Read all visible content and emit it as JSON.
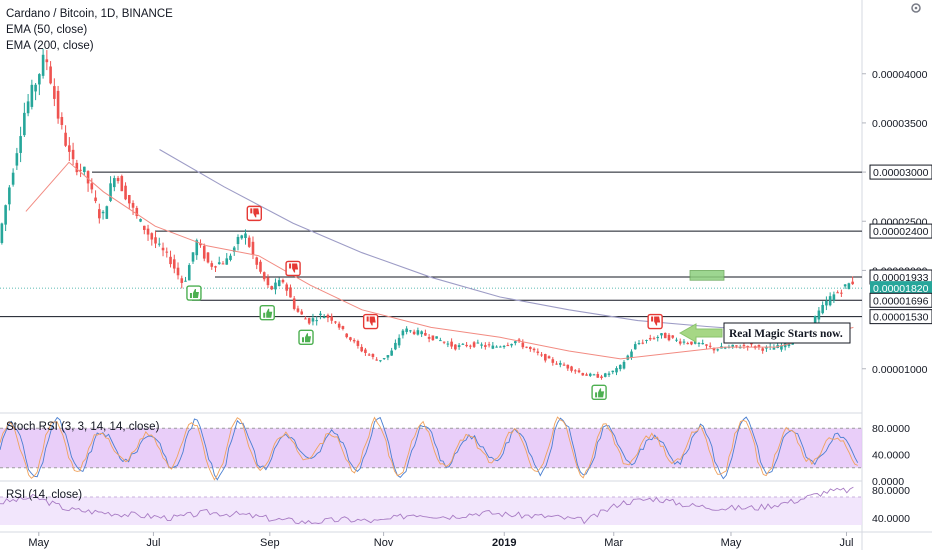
{
  "legend": {
    "title": "Cardano / Bitcoin, 1D, BINANCE",
    "ema_fast": "EMA (50, close)",
    "ema_slow": "EMA (200, close)"
  },
  "panels": {
    "stoch_label": "Stoch RSI (3, 3, 14, 14, close)",
    "rsi_label": "RSI (14, close)"
  },
  "annotation": {
    "text": "Real Magic Starts now."
  },
  "colors": {
    "up": "#26a69a",
    "down": "#ef5350",
    "ema_fast": "#f28b82",
    "ema_slow": "#9d9cc6",
    "price_badge": "#26a69a",
    "band": "#e1bef7",
    "arrow": "#a6d785",
    "target": "#8ccf7e"
  },
  "chart_data": [
    {
      "type": "candlestick",
      "title": "Cardano / Bitcoin, 1D, BINANCE",
      "x_ticks": [
        "May",
        "Jul",
        "Sep",
        "Nov",
        "2019",
        "Mar",
        "May",
        "Jul"
      ],
      "y_ticks": [
        "0.00004000",
        "0.00003500",
        "0.00003000",
        "0.00002500",
        "0.00002000",
        "0.00001000"
      ],
      "ylim": [
        5.5e-06,
        4.75e-05
      ],
      "series_points": [
        {
          "t": 0.0,
          "v": 2.28e-05
        },
        {
          "t": 0.03,
          "v": 3.6e-05
        },
        {
          "t": 0.045,
          "v": 3.95e-05
        },
        {
          "t": 0.055,
          "v": 4.2e-05
        },
        {
          "t": 0.07,
          "v": 3.55e-05
        },
        {
          "t": 0.085,
          "v": 3.1e-05
        },
        {
          "t": 0.1,
          "v": 3e-05
        },
        {
          "t": 0.12,
          "v": 2.5e-05
        },
        {
          "t": 0.135,
          "v": 3e-05
        },
        {
          "t": 0.16,
          "v": 2.55e-05
        },
        {
          "t": 0.18,
          "v": 2.3e-05
        },
        {
          "t": 0.2,
          "v": 2.1e-05
        },
        {
          "t": 0.215,
          "v": 1.85e-05
        },
        {
          "t": 0.23,
          "v": 2.3e-05
        },
        {
          "t": 0.245,
          "v": 2.05e-05
        },
        {
          "t": 0.265,
          "v": 2.1e-05
        },
        {
          "t": 0.285,
          "v": 2.4e-05
        },
        {
          "t": 0.3,
          "v": 2.05e-05
        },
        {
          "t": 0.315,
          "v": 1.8e-05
        },
        {
          "t": 0.33,
          "v": 1.9e-05
        },
        {
          "t": 0.345,
          "v": 1.6e-05
        },
        {
          "t": 0.36,
          "v": 1.48e-05
        },
        {
          "t": 0.375,
          "v": 1.55e-05
        },
        {
          "t": 0.39,
          "v": 1.5e-05
        },
        {
          "t": 0.4,
          "v": 1.38e-05
        },
        {
          "t": 0.42,
          "v": 1.2e-05
        },
        {
          "t": 0.44,
          "v": 1.08e-05
        },
        {
          "t": 0.455,
          "v": 1.15e-05
        },
        {
          "t": 0.47,
          "v": 1.4e-05
        },
        {
          "t": 0.49,
          "v": 1.36e-05
        },
        {
          "t": 0.51,
          "v": 1.3e-05
        },
        {
          "t": 0.53,
          "v": 1.22e-05
        },
        {
          "t": 0.55,
          "v": 1.25e-05
        },
        {
          "t": 0.575,
          "v": 1.22e-05
        },
        {
          "t": 0.6,
          "v": 1.28e-05
        },
        {
          "t": 0.62,
          "v": 1.18e-05
        },
        {
          "t": 0.64,
          "v": 1.08e-05
        },
        {
          "t": 0.66,
          "v": 1.02e-05
        },
        {
          "t": 0.68,
          "v": 9.4e-06
        },
        {
          "t": 0.7,
          "v": 9.2e-06
        },
        {
          "t": 0.72,
          "v": 1e-05
        },
        {
          "t": 0.74,
          "v": 1.25e-05
        },
        {
          "t": 0.755,
          "v": 1.3e-05
        },
        {
          "t": 0.77,
          "v": 1.34e-05
        },
        {
          "t": 0.79,
          "v": 1.28e-05
        },
        {
          "t": 0.81,
          "v": 1.26e-05
        },
        {
          "t": 0.83,
          "v": 1.2e-05
        },
        {
          "t": 0.85,
          "v": 1.22e-05
        },
        {
          "t": 0.87,
          "v": 1.24e-05
        },
        {
          "t": 0.89,
          "v": 1.2e-05
        },
        {
          "t": 0.905,
          "v": 1.22e-05
        },
        {
          "t": 0.92,
          "v": 1.28e-05
        },
        {
          "t": 0.935,
          "v": 1.35e-05
        },
        {
          "t": 0.95,
          "v": 1.55e-05
        },
        {
          "t": 0.965,
          "v": 1.72e-05
        },
        {
          "t": 0.98,
          "v": 1.82e-05
        },
        {
          "t": 0.99,
          "v": 1.88e-05
        }
      ],
      "ema50_points": [
        {
          "t": 0.03,
          "v": 2.6e-05
        },
        {
          "t": 0.08,
          "v": 3.1e-05
        },
        {
          "t": 0.12,
          "v": 2.8e-05
        },
        {
          "t": 0.18,
          "v": 2.45e-05
        },
        {
          "t": 0.24,
          "v": 2.25e-05
        },
        {
          "t": 0.3,
          "v": 2.15e-05
        },
        {
          "t": 0.36,
          "v": 1.85e-05
        },
        {
          "t": 0.42,
          "v": 1.6e-05
        },
        {
          "t": 0.5,
          "v": 1.42e-05
        },
        {
          "t": 0.58,
          "v": 1.32e-05
        },
        {
          "t": 0.66,
          "v": 1.18e-05
        },
        {
          "t": 0.72,
          "v": 1.1e-05
        },
        {
          "t": 0.78,
          "v": 1.16e-05
        },
        {
          "t": 0.84,
          "v": 1.22e-05
        },
        {
          "t": 0.9,
          "v": 1.22e-05
        },
        {
          "t": 0.96,
          "v": 1.35e-05
        },
        {
          "t": 0.99,
          "v": 1.42e-05
        }
      ],
      "ema200_points": [
        {
          "t": 0.185,
          "v": 3.23e-05
        },
        {
          "t": 0.26,
          "v": 2.85e-05
        },
        {
          "t": 0.34,
          "v": 2.48e-05
        },
        {
          "t": 0.42,
          "v": 2.18e-05
        },
        {
          "t": 0.5,
          "v": 1.93e-05
        },
        {
          "t": 0.58,
          "v": 1.73e-05
        },
        {
          "t": 0.66,
          "v": 1.6e-05
        },
        {
          "t": 0.74,
          "v": 1.49e-05
        },
        {
          "t": 0.82,
          "v": 1.43e-05
        },
        {
          "t": 0.9,
          "v": 1.38e-05
        },
        {
          "t": 0.97,
          "v": 1.39e-05
        }
      ],
      "levels": [
        {
          "value": 3e-05,
          "label": "0.00003000",
          "badge": "outline"
        },
        {
          "value": 2.4e-05,
          "label": "0.00002400",
          "badge": "outline"
        },
        {
          "value": 1.933e-05,
          "label": "0.00001933",
          "badge": "outline"
        },
        {
          "value": 1.82e-05,
          "label": "0.00001820",
          "badge": "filled"
        },
        {
          "value": 1.696e-05,
          "label": "0.00001696",
          "badge": "outline"
        },
        {
          "value": 1.53e-05,
          "label": "0.00001530",
          "badge": "outline"
        }
      ],
      "marks": [
        {
          "kind": "up",
          "t": 0.225,
          "v": 1.77e-05
        },
        {
          "kind": "down",
          "t": 0.295,
          "v": 2.58e-05
        },
        {
          "kind": "up",
          "t": 0.31,
          "v": 1.57e-05
        },
        {
          "kind": "down",
          "t": 0.34,
          "v": 2.02e-05
        },
        {
          "kind": "up",
          "t": 0.355,
          "v": 1.32e-05
        },
        {
          "kind": "down",
          "t": 0.43,
          "v": 1.48e-05
        },
        {
          "kind": "up",
          "t": 0.695,
          "v": 7.6e-06
        },
        {
          "kind": "down",
          "t": 0.76,
          "v": 1.48e-05
        }
      ]
    },
    {
      "type": "line",
      "title": "Stoch RSI (3, 3, 14, 14, close)",
      "y_ticks": [
        "80.0000",
        "40.0000",
        "0.0000"
      ],
      "band": [
        20,
        80
      ],
      "ylim": [
        0,
        100
      ]
    },
    {
      "type": "line",
      "title": "RSI (14, close)",
      "y_ticks": [
        "80.0000",
        "40.0000"
      ],
      "band": [
        30,
        70
      ],
      "ylim": [
        20,
        90
      ],
      "series_points": [
        {
          "t": 0.0,
          "v": 62
        },
        {
          "t": 0.04,
          "v": 70
        },
        {
          "t": 0.08,
          "v": 52
        },
        {
          "t": 0.12,
          "v": 48
        },
        {
          "t": 0.16,
          "v": 44
        },
        {
          "t": 0.2,
          "v": 40
        },
        {
          "t": 0.24,
          "v": 48
        },
        {
          "t": 0.28,
          "v": 45
        },
        {
          "t": 0.32,
          "v": 38
        },
        {
          "t": 0.36,
          "v": 34
        },
        {
          "t": 0.4,
          "v": 38
        },
        {
          "t": 0.44,
          "v": 35
        },
        {
          "t": 0.48,
          "v": 46
        },
        {
          "t": 0.52,
          "v": 42
        },
        {
          "t": 0.56,
          "v": 48
        },
        {
          "t": 0.6,
          "v": 44
        },
        {
          "t": 0.64,
          "v": 42
        },
        {
          "t": 0.68,
          "v": 36
        },
        {
          "t": 0.72,
          "v": 62
        },
        {
          "t": 0.76,
          "v": 68
        },
        {
          "t": 0.8,
          "v": 58
        },
        {
          "t": 0.84,
          "v": 54
        },
        {
          "t": 0.88,
          "v": 55
        },
        {
          "t": 0.92,
          "v": 64
        },
        {
          "t": 0.96,
          "v": 78
        },
        {
          "t": 0.99,
          "v": 80
        }
      ]
    }
  ]
}
